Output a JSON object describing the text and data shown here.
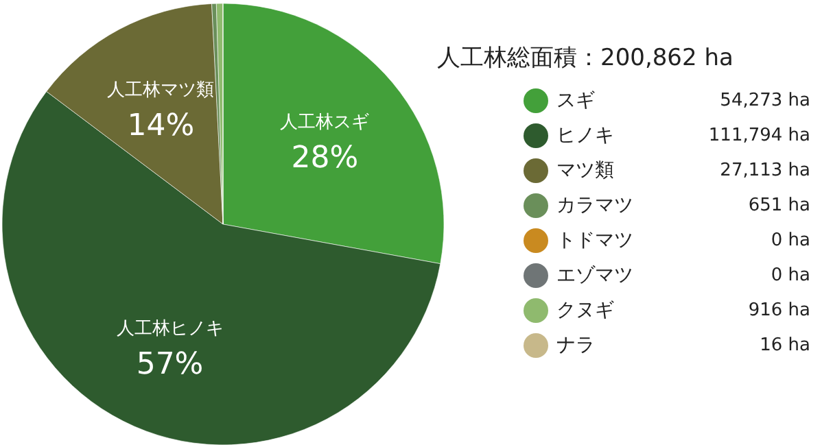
{
  "chart_data": {
    "type": "pie",
    "title": "人工林総面積：200,862 ha",
    "categories": [
      "スギ",
      "ヒノキ",
      "マツ類",
      "カラマツ",
      "トドマツ",
      "エゾマツ",
      "クヌギ",
      "ナラ"
    ],
    "values": [
      54273,
      111794,
      27113,
      651,
      0,
      0,
      916,
      16
    ],
    "value_labels": [
      "54,273 ha",
      "111,794 ha",
      "27,113 ha",
      "651 ha",
      "0 ha",
      "0 ha",
      "916 ha",
      "16 ha"
    ],
    "colors": [
      "#43a03a",
      "#2e5b2e",
      "#6b6a35",
      "#6a8f5a",
      "#c98a20",
      "#6f7576",
      "#8fba6e",
      "#c7b88a"
    ],
    "legend": "right",
    "annotations": [
      {
        "text": "人工林スギ\n28%",
        "x": "スギ"
      },
      {
        "text": "人工林ヒノキ\n57%",
        "x": "ヒノキ"
      },
      {
        "text": "人工林マツ類\n14%",
        "x": "マツ類"
      }
    ]
  }
}
